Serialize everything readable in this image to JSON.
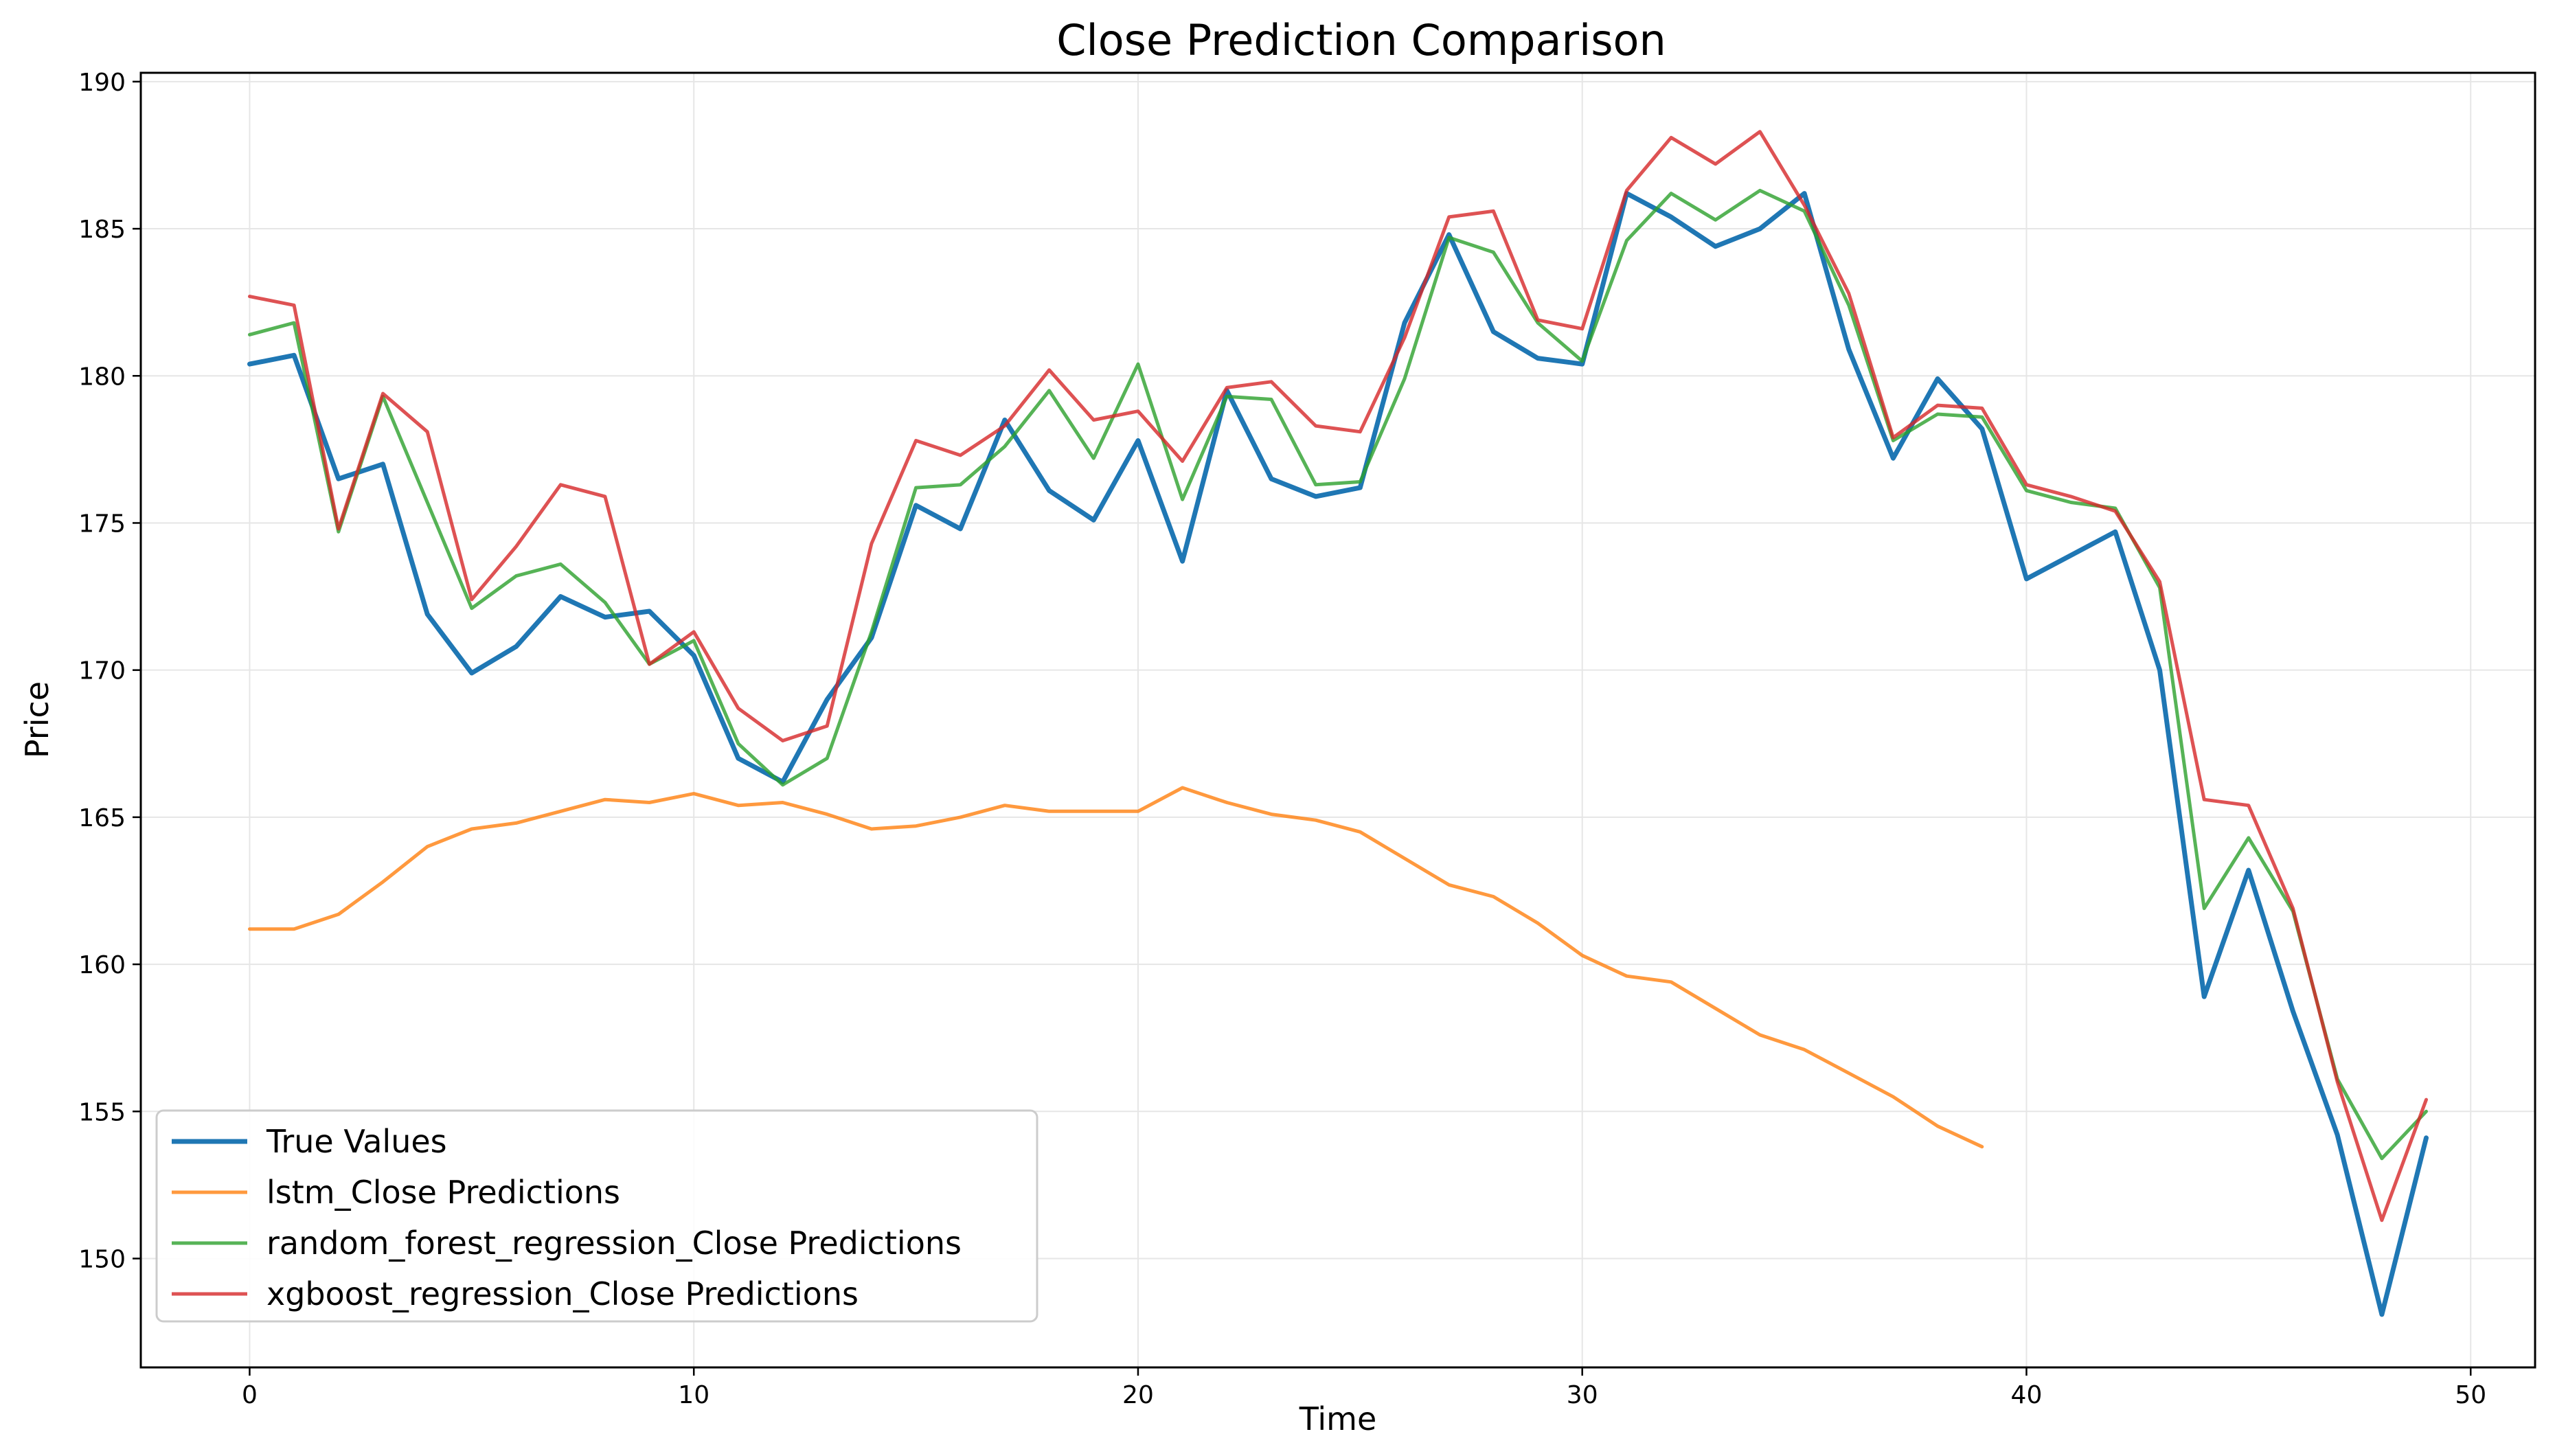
{
  "chart_data": {
    "type": "line",
    "title": "Close Prediction Comparison",
    "xlabel": "Time",
    "ylabel": "Price",
    "xlim": [
      -2.45,
      51.45
    ],
    "ylim": [
      146.3,
      190.3
    ],
    "xticks": [
      0,
      10,
      20,
      30,
      40,
      50
    ],
    "yticks": [
      150,
      155,
      160,
      165,
      170,
      175,
      180,
      185,
      190
    ],
    "grid": true,
    "legend_position": "lower-left",
    "series": [
      {
        "name": "True Values",
        "color": "#1f77b4",
        "x": [
          0,
          1,
          2,
          3,
          4,
          5,
          6,
          7,
          8,
          9,
          10,
          11,
          12,
          13,
          14,
          15,
          16,
          17,
          18,
          19,
          20,
          21,
          22,
          23,
          24,
          25,
          26,
          27,
          28,
          29,
          30,
          31,
          32,
          33,
          34,
          35,
          36,
          37,
          38,
          39,
          40,
          41,
          42,
          43,
          44,
          45,
          46,
          47,
          48,
          49
        ],
        "values": [
          180.4,
          180.7,
          176.5,
          177.0,
          171.9,
          169.9,
          170.8,
          172.5,
          171.8,
          172.0,
          170.5,
          167.0,
          166.2,
          169.0,
          171.1,
          175.6,
          174.8,
          178.5,
          176.1,
          175.1,
          177.8,
          173.7,
          179.5,
          176.5,
          175.9,
          176.2,
          181.8,
          184.8,
          181.5,
          180.6,
          180.4,
          186.2,
          185.4,
          184.4,
          185.0,
          186.2,
          180.9,
          177.2,
          179.9,
          178.2,
          173.1,
          173.9,
          174.7,
          170.0,
          158.9,
          163.2,
          158.4,
          154.2,
          148.1,
          154.1
        ]
      },
      {
        "name": "lstm_Close Predictions",
        "color": "#ff7f0e",
        "x": [
          0,
          1,
          2,
          3,
          4,
          5,
          6,
          7,
          8,
          9,
          10,
          11,
          12,
          13,
          14,
          15,
          16,
          17,
          18,
          19,
          20,
          21,
          22,
          23,
          24,
          25,
          26,
          27,
          28,
          29,
          30,
          31,
          32,
          33,
          34,
          35,
          36,
          37,
          38,
          39
        ],
        "values": [
          161.2,
          161.2,
          161.7,
          162.8,
          164.0,
          164.6,
          164.8,
          165.2,
          165.6,
          165.5,
          165.8,
          165.4,
          165.5,
          165.1,
          164.6,
          164.7,
          165.0,
          165.4,
          165.2,
          165.2,
          165.2,
          166.0,
          165.5,
          165.1,
          164.9,
          164.5,
          163.6,
          162.7,
          162.3,
          161.4,
          160.3,
          159.6,
          159.4,
          158.5,
          157.6,
          157.1,
          156.3,
          155.5,
          154.5,
          153.8
        ]
      },
      {
        "name": "random_forest_regression_Close Predictions",
        "color": "#2ca02c",
        "x": [
          0,
          1,
          2,
          3,
          4,
          5,
          6,
          7,
          8,
          9,
          10,
          11,
          12,
          13,
          14,
          15,
          16,
          17,
          18,
          19,
          20,
          21,
          22,
          23,
          24,
          25,
          26,
          27,
          28,
          29,
          30,
          31,
          32,
          33,
          34,
          35,
          36,
          37,
          38,
          39,
          40,
          41,
          42,
          43,
          44,
          45,
          46,
          47,
          48,
          49
        ],
        "values": [
          181.4,
          181.8,
          174.7,
          179.3,
          175.7,
          172.1,
          173.2,
          173.6,
          172.3,
          170.2,
          171.0,
          167.5,
          166.1,
          167.0,
          171.3,
          176.2,
          176.3,
          177.6,
          179.5,
          177.2,
          180.4,
          175.8,
          179.3,
          179.2,
          176.3,
          176.4,
          179.9,
          184.7,
          184.2,
          181.8,
          180.5,
          184.6,
          186.2,
          185.3,
          186.3,
          185.6,
          182.4,
          177.8,
          178.7,
          178.6,
          176.1,
          175.7,
          175.5,
          172.8,
          161.9,
          164.3,
          161.8,
          156.1,
          153.4,
          155.0
        ]
      },
      {
        "name": "xgboost_regression_Close Predictions",
        "color": "#d62728",
        "x": [
          0,
          1,
          2,
          3,
          4,
          5,
          6,
          7,
          8,
          9,
          10,
          11,
          12,
          13,
          14,
          15,
          16,
          17,
          18,
          19,
          20,
          21,
          22,
          23,
          24,
          25,
          26,
          27,
          28,
          29,
          30,
          31,
          32,
          33,
          34,
          35,
          36,
          37,
          38,
          39,
          40,
          41,
          42,
          43,
          44,
          45,
          46,
          47,
          48,
          49
        ],
        "values": [
          182.7,
          182.4,
          174.8,
          179.4,
          178.1,
          172.4,
          174.2,
          176.3,
          175.9,
          170.2,
          171.3,
          168.7,
          167.6,
          168.1,
          174.3,
          177.8,
          177.3,
          178.3,
          180.2,
          178.5,
          178.8,
          177.1,
          179.6,
          179.8,
          178.3,
          178.1,
          181.3,
          185.4,
          185.6,
          181.9,
          181.6,
          186.3,
          188.1,
          187.2,
          188.3,
          185.8,
          182.8,
          177.9,
          179.0,
          178.9,
          176.3,
          175.9,
          175.4,
          173.0,
          165.6,
          165.4,
          161.9,
          156.0,
          151.3,
          155.4
        ]
      }
    ]
  }
}
